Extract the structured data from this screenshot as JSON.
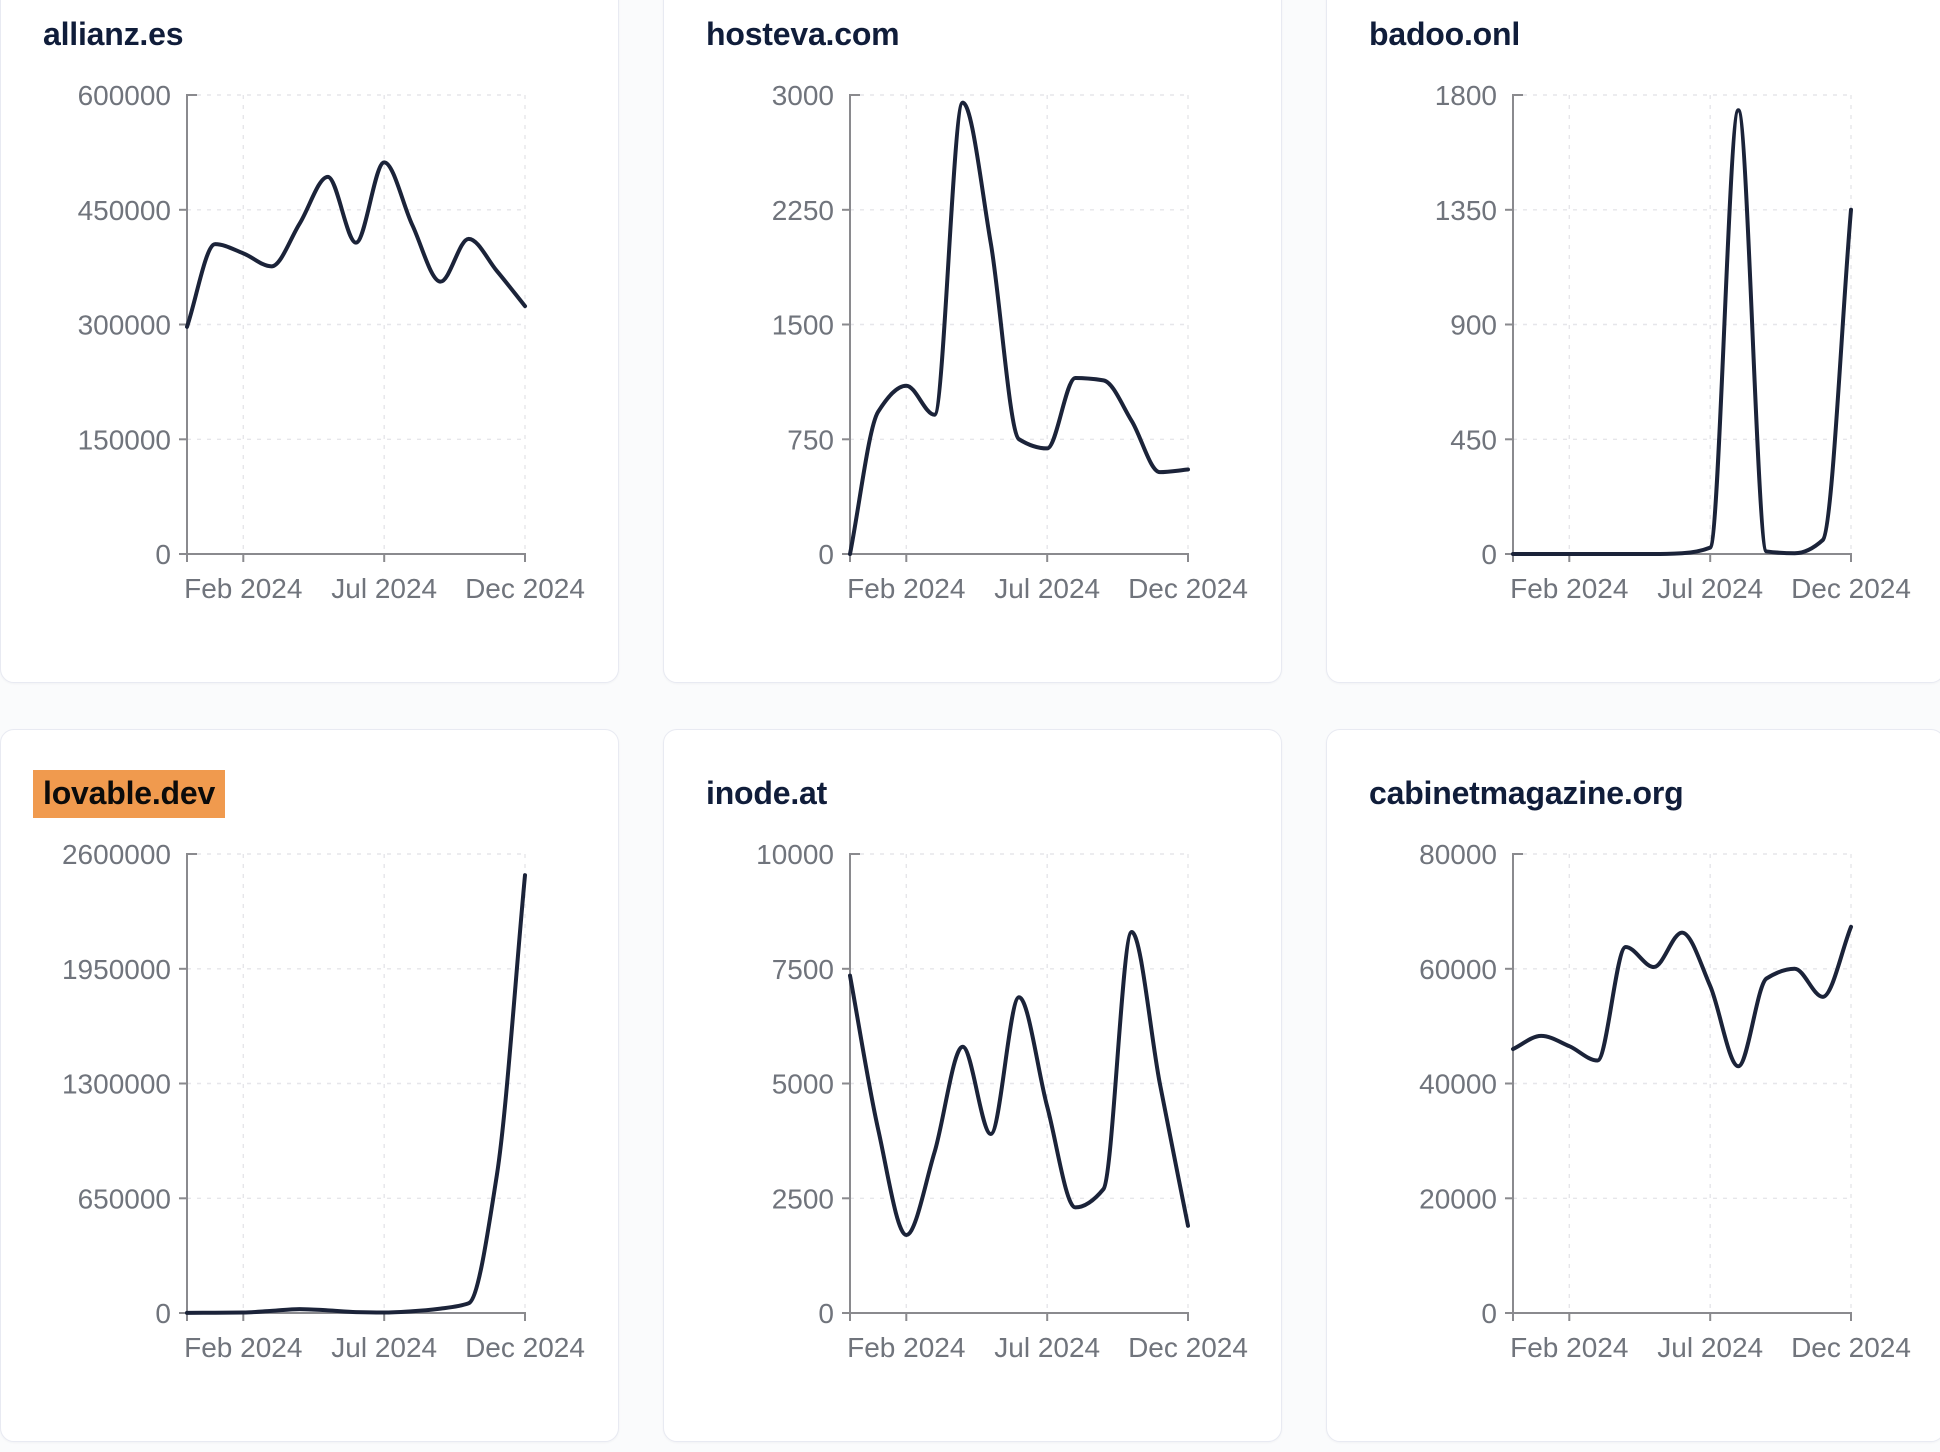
{
  "styles": {
    "page_background": "#fafbfc",
    "card_background": "#ffffff",
    "card_border": "#e8eaf2",
    "title_color": "#101d3a",
    "highlight_background": "#f09a4e",
    "highlight_text_color": "#0b0b0b",
    "line_color": "#1b2339",
    "axis_color": "#8a8a8e",
    "tick_label_color": "#70747c",
    "gridline_color": "#e6e6ea"
  },
  "chart_data": [
    {
      "type": "line",
      "title": "allianz.es",
      "highlighted": false,
      "x_months": [
        "Dec 2023",
        "Jan 2024",
        "Feb 2024",
        "Mar 2024",
        "Apr 2024",
        "May 2024",
        "Jun 2024",
        "Jul 2024",
        "Aug 2024",
        "Sep 2024",
        "Oct 2024",
        "Nov 2024",
        "Dec 2024"
      ],
      "x_tick_labels": [
        "Feb 2024",
        "Jul 2024",
        "Dec 2024"
      ],
      "x_tick_indices": [
        2,
        7,
        12
      ],
      "ylim": [
        0,
        600000
      ],
      "y_ticks": [
        0,
        150000,
        300000,
        450000,
        600000
      ],
      "values": [
        297000,
        405000,
        393000,
        376000,
        432000,
        493000,
        407000,
        512000,
        430000,
        356000,
        412000,
        370000,
        324000
      ],
      "grid": true,
      "legend": false
    },
    {
      "type": "line",
      "title": "hosteva.com",
      "highlighted": false,
      "x_months": [
        "Dec 2023",
        "Jan 2024",
        "Feb 2024",
        "Mar 2024",
        "Apr 2024",
        "May 2024",
        "Jun 2024",
        "Jul 2024",
        "Aug 2024",
        "Sep 2024",
        "Oct 2024",
        "Nov 2024",
        "Dec 2024"
      ],
      "x_tick_labels": [
        "Feb 2024",
        "Jul 2024",
        "Dec 2024"
      ],
      "x_tick_indices": [
        2,
        7,
        12
      ],
      "ylim": [
        0,
        3000
      ],
      "y_ticks": [
        0,
        750,
        1500,
        2250,
        3000
      ],
      "values": [
        0,
        930,
        1100,
        910,
        2950,
        2030,
        750,
        690,
        1150,
        1135,
        870,
        535,
        552
      ],
      "grid": true,
      "legend": false
    },
    {
      "type": "line",
      "title": "badoo.onl",
      "highlighted": false,
      "x_months": [
        "Dec 2023",
        "Jan 2024",
        "Feb 2024",
        "Mar 2024",
        "Apr 2024",
        "May 2024",
        "Jun 2024",
        "Jul 2024",
        "Aug 2024",
        "Sep 2024",
        "Oct 2024",
        "Nov 2024",
        "Dec 2024"
      ],
      "x_tick_labels": [
        "Feb 2024",
        "Jul 2024",
        "Dec 2024"
      ],
      "x_tick_indices": [
        2,
        7,
        12
      ],
      "ylim": [
        0,
        1800
      ],
      "y_ticks": [
        0,
        450,
        900,
        1350,
        1800
      ],
      "values": [
        0,
        0,
        0,
        0,
        0,
        0,
        3,
        25,
        1740,
        10,
        3,
        55,
        1350
      ],
      "grid": true,
      "legend": false
    },
    {
      "type": "line",
      "title": "lovable.dev",
      "highlighted": true,
      "x_months": [
        "Dec 2023",
        "Jan 2024",
        "Feb 2024",
        "Mar 2024",
        "Apr 2024",
        "May 2024",
        "Jun 2024",
        "Jul 2024",
        "Aug 2024",
        "Sep 2024",
        "Oct 2024",
        "Nov 2024",
        "Dec 2024"
      ],
      "x_tick_labels": [
        "Feb 2024",
        "Jul 2024",
        "Dec 2024"
      ],
      "x_tick_indices": [
        2,
        7,
        12
      ],
      "ylim": [
        0,
        2600000
      ],
      "y_ticks": [
        0,
        650000,
        1300000,
        1950000,
        2600000
      ],
      "values": [
        1000,
        1500,
        2500,
        12000,
        22000,
        15000,
        5000,
        3000,
        10000,
        25000,
        55000,
        780000,
        2480000
      ],
      "grid": true,
      "legend": false
    },
    {
      "type": "line",
      "title": "inode.at",
      "highlighted": false,
      "x_months": [
        "Dec 2023",
        "Jan 2024",
        "Feb 2024",
        "Mar 2024",
        "Apr 2024",
        "May 2024",
        "Jun 2024",
        "Jul 2024",
        "Aug 2024",
        "Sep 2024",
        "Oct 2024",
        "Nov 2024",
        "Dec 2024"
      ],
      "x_tick_labels": [
        "Feb 2024",
        "Jul 2024",
        "Dec 2024"
      ],
      "x_tick_indices": [
        2,
        7,
        12
      ],
      "ylim": [
        0,
        10000
      ],
      "y_ticks": [
        0,
        2500,
        5000,
        7500,
        10000
      ],
      "values": [
        7350,
        4000,
        1700,
        3500,
        5800,
        3900,
        6880,
        4500,
        2300,
        2700,
        8300,
        5000,
        1900
      ],
      "grid": true,
      "legend": false
    },
    {
      "type": "line",
      "title": "cabinetmagazine.org",
      "highlighted": false,
      "x_months": [
        "Dec 2023",
        "Jan 2024",
        "Feb 2024",
        "Mar 2024",
        "Apr 2024",
        "May 2024",
        "Jun 2024",
        "Jul 2024",
        "Aug 2024",
        "Sep 2024",
        "Oct 2024",
        "Nov 2024",
        "Dec 2024"
      ],
      "x_tick_labels": [
        "Feb 2024",
        "Jul 2024",
        "Dec 2024"
      ],
      "x_tick_indices": [
        2,
        7,
        12
      ],
      "ylim": [
        0,
        80000
      ],
      "y_ticks": [
        0,
        20000,
        40000,
        60000,
        80000
      ],
      "values": [
        46000,
        48300,
        46500,
        44000,
        63800,
        60300,
        66300,
        57000,
        43000,
        58300,
        60000,
        55100,
        67300
      ],
      "grid": true,
      "legend": false
    }
  ]
}
